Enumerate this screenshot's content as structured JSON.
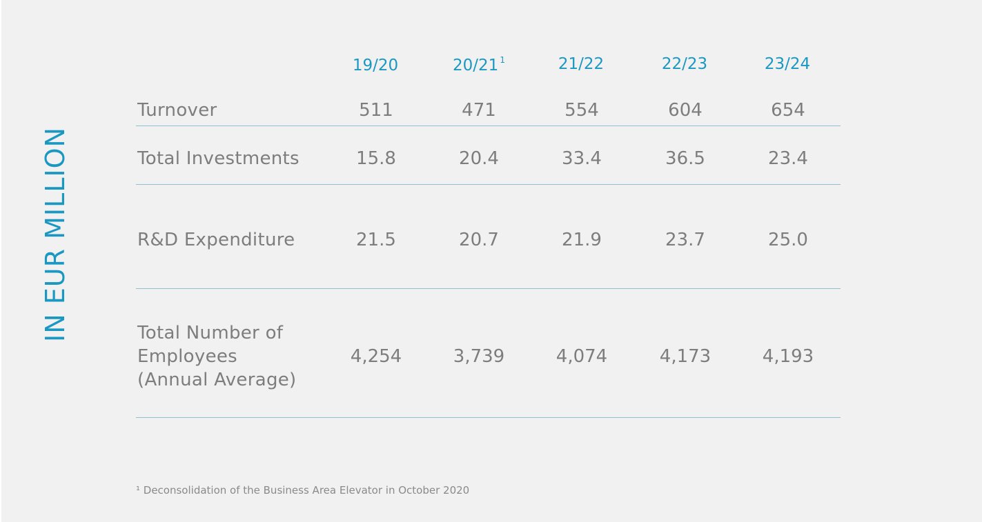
{
  "side_label": "IN EUR MILLION",
  "footnote": "¹ Deconsolidation of the Business Area Elevator in October 2020",
  "colors": {
    "accent": "#1a98c2",
    "text": "#7d7d7d",
    "rule": "#8fbfd3",
    "background": "#f1f1f1"
  },
  "chart_data": {
    "type": "table",
    "columns": [
      {
        "label": "19/20",
        "note": ""
      },
      {
        "label": "20/21",
        "note": "1"
      },
      {
        "label": "21/22",
        "note": ""
      },
      {
        "label": "22/23",
        "note": ""
      },
      {
        "label": "23/24",
        "note": ""
      }
    ],
    "rows": [
      {
        "label": "Turnover",
        "values": [
          "511",
          "471",
          "554",
          "604",
          "654"
        ]
      },
      {
        "label": "Total Investments",
        "values": [
          "15.8",
          "20.4",
          "33.4",
          "36.5",
          "23.4"
        ]
      },
      {
        "label": "R&D Expenditure",
        "values": [
          "21.5",
          "20.7",
          "21.9",
          "23.7",
          "25.0"
        ]
      },
      {
        "label": "Total Number of\nEmployees\n(Annual Average)",
        "values": [
          "4,254",
          "3,739",
          "4,074",
          "4,173",
          "4,193"
        ]
      }
    ]
  }
}
